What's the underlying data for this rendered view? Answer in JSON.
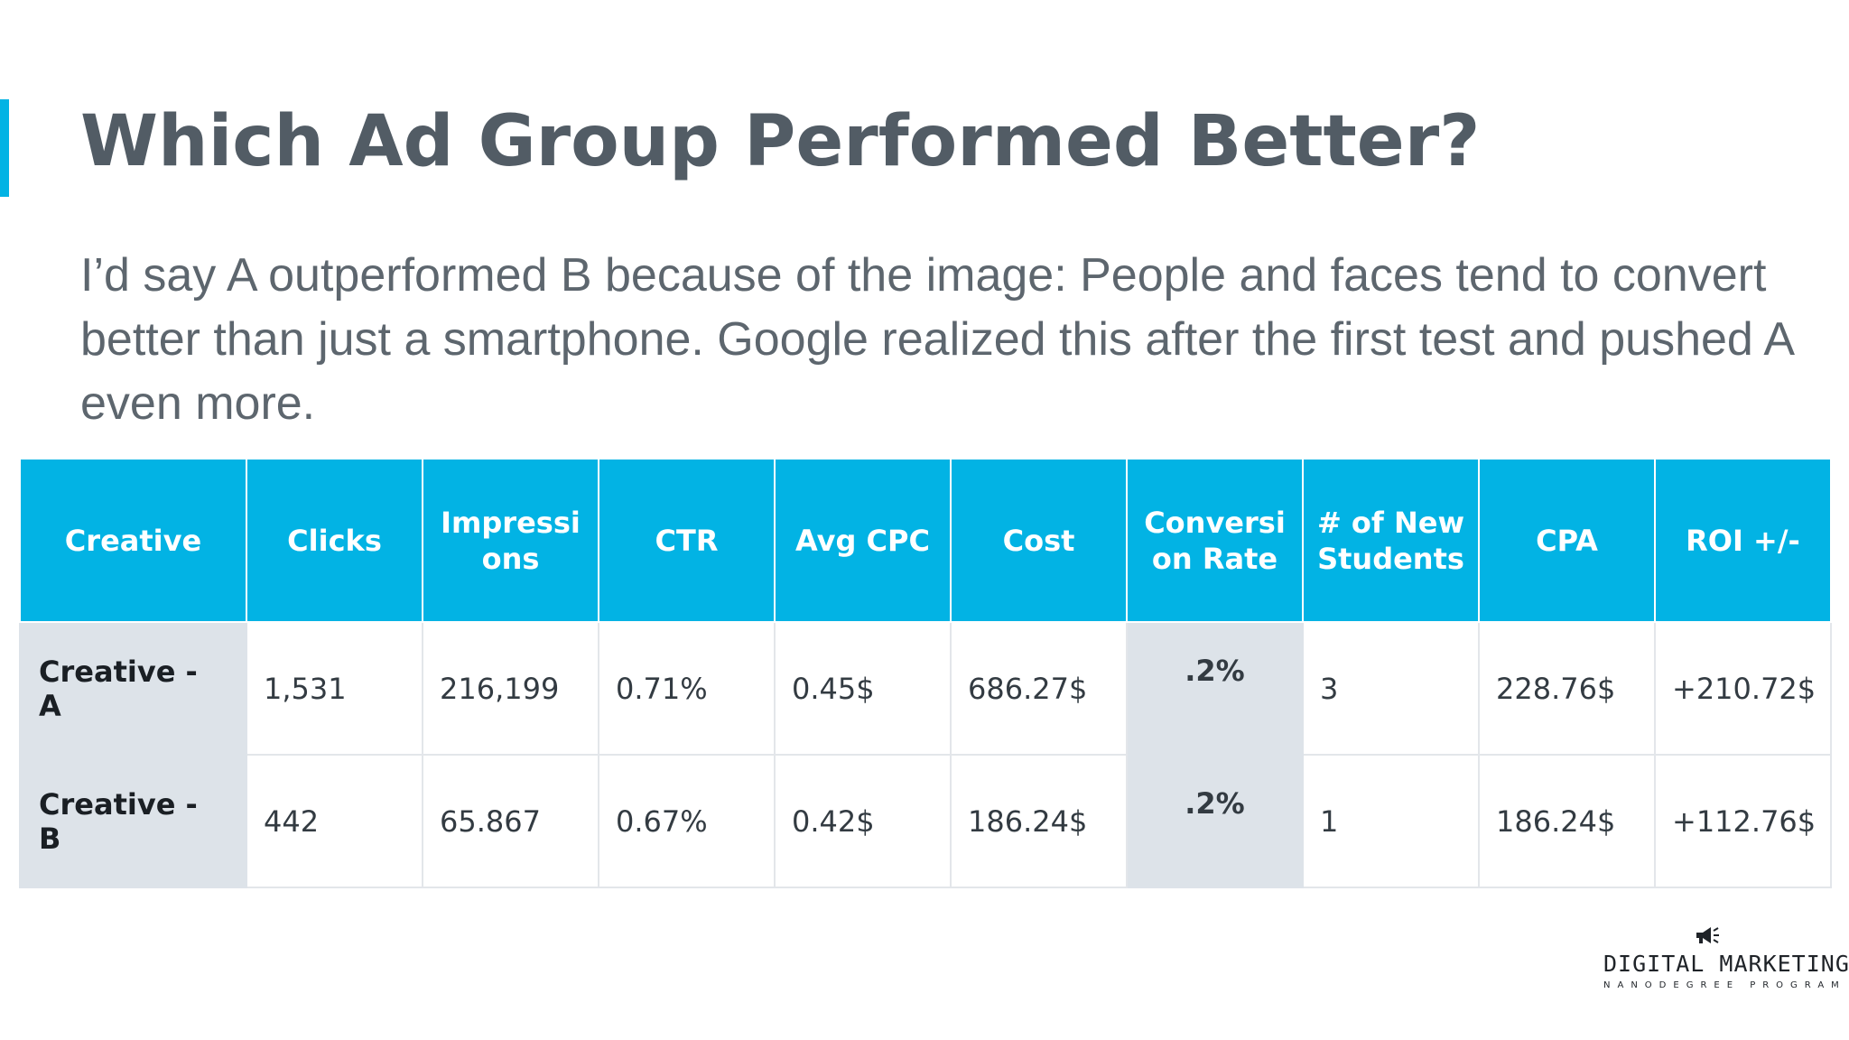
{
  "slide": {
    "title": "Which Ad Group Performed Better?",
    "body": "I’d say A outperformed B because of the image: People and faces tend to convert better than just a smartphone. Google realized this after the first test and pushed A even more."
  },
  "table": {
    "headers": [
      "Creative",
      "Clicks",
      "Impressi ons",
      "CTR",
      "Avg CPC",
      "Cost",
      "Conversi on Rate",
      "# of New Students",
      "CPA",
      "ROI +/-"
    ],
    "rows": [
      {
        "creative": "Creative - A",
        "clicks": "1,531",
        "impressions": "216,199",
        "ctr": "0.71%",
        "avg_cpc": "0.45$",
        "cost": "686.27$",
        "conversion_rate": ".2%",
        "new_students": "3",
        "cpa": "228.76$",
        "roi": "+210.72$"
      },
      {
        "creative": "Creative - B",
        "clicks": "442",
        "impressions": "65.867",
        "ctr": "0.67%",
        "avg_cpc": "0.42$",
        "cost": "186.24$",
        "conversion_rate": ".2%",
        "new_students": "1",
        "cpa": "186.24$",
        "roi": "+112.76$"
      }
    ]
  },
  "logo": {
    "icon": "megaphone-icon",
    "brand": "DIGITAL MARKETING",
    "program": "NANODEGREE PROGRAM"
  },
  "colors": {
    "accent": "#02b3e4",
    "title": "#525c65",
    "highlight_cell": "#dde3e9"
  }
}
